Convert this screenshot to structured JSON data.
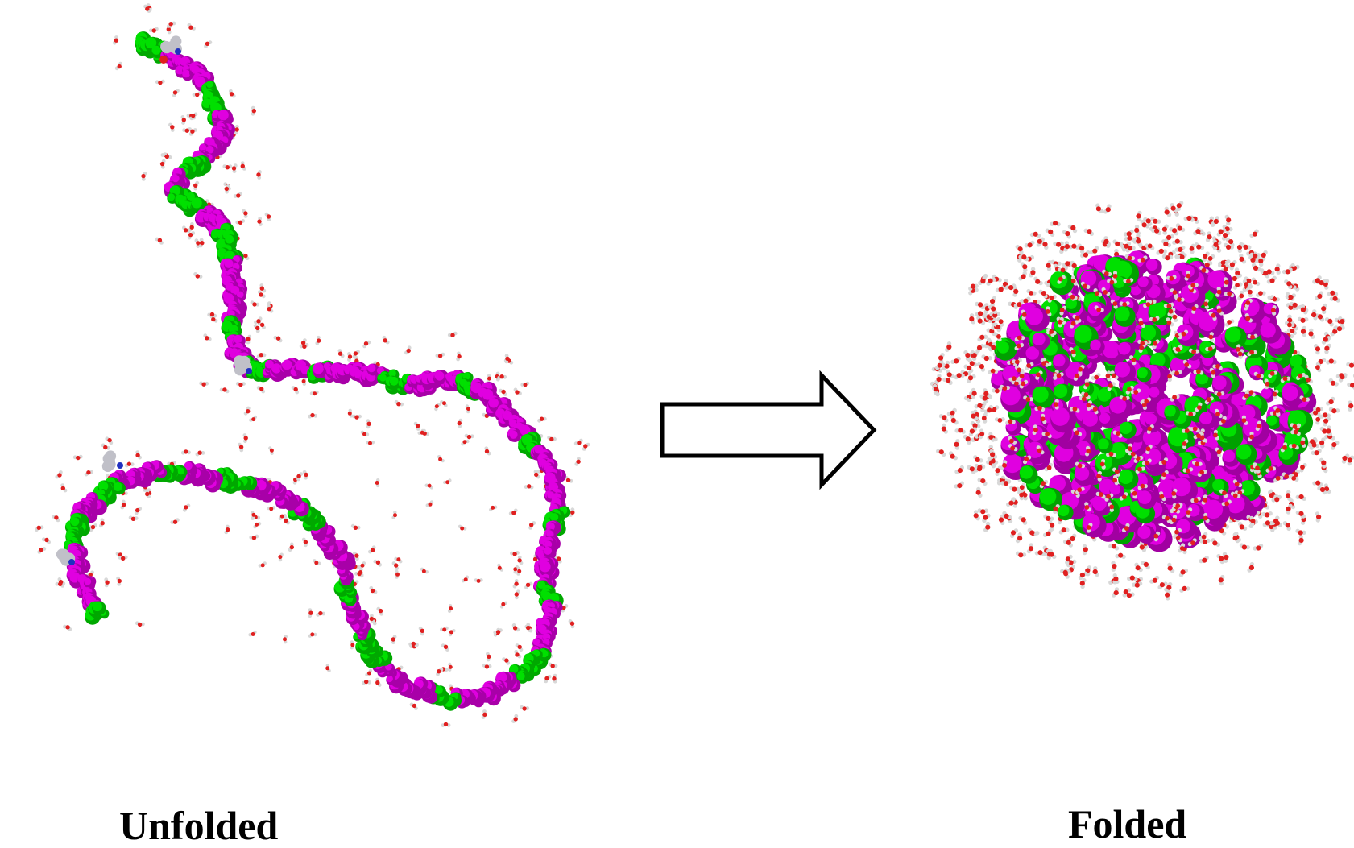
{
  "figure": {
    "labels": {
      "unfolded": "Unfolded",
      "folded": "Folded"
    },
    "colors": {
      "background": "#ffffff",
      "polar_residue": "#e000e0",
      "hydrophobic_residue": "#00e000",
      "water_oxygen": "#e02020",
      "water_hydrogen": "#d8d8d8",
      "terminal_group": "#c0c0c8",
      "nitrogen": "#2030c0",
      "arrow_stroke": "#000000",
      "arrow_fill": "#ffffff"
    },
    "arrow_icon": "right-arrow-outline-icon"
  }
}
